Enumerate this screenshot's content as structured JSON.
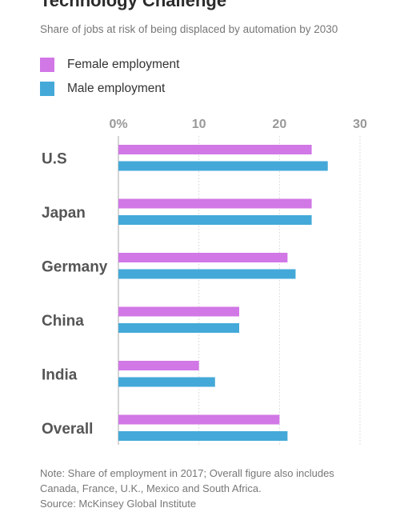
{
  "chart_data": {
    "type": "bar",
    "orientation": "horizontal",
    "title": "Technology Challenge",
    "subtitle": "Share of jobs at risk of being displaced by automation by 2030",
    "categories": [
      "U.S",
      "Japan",
      "Germany",
      "China",
      "India",
      "Overall"
    ],
    "series": [
      {
        "name": "Female employment",
        "color": "#d177e6",
        "values": [
          24,
          24,
          21,
          15,
          10,
          20
        ]
      },
      {
        "name": "Male employment",
        "color": "#44a9d8",
        "values": [
          26,
          24,
          22,
          15,
          12,
          21
        ]
      }
    ],
    "xlim": [
      0,
      30
    ],
    "xticks": [
      {
        "value": 0,
        "label": "0%"
      },
      {
        "value": 10,
        "label": "10"
      },
      {
        "value": 20,
        "label": "20"
      },
      {
        "value": 30,
        "label": "30"
      }
    ],
    "grid": true,
    "legend_position": "top-left"
  },
  "notes": {
    "line1": "Note: Share of employment in 2017; Overall figure also includes",
    "line2": "Canada, France, U.K., Mexico and South Africa.",
    "line3": "Source: McKinsey Global Institute"
  }
}
